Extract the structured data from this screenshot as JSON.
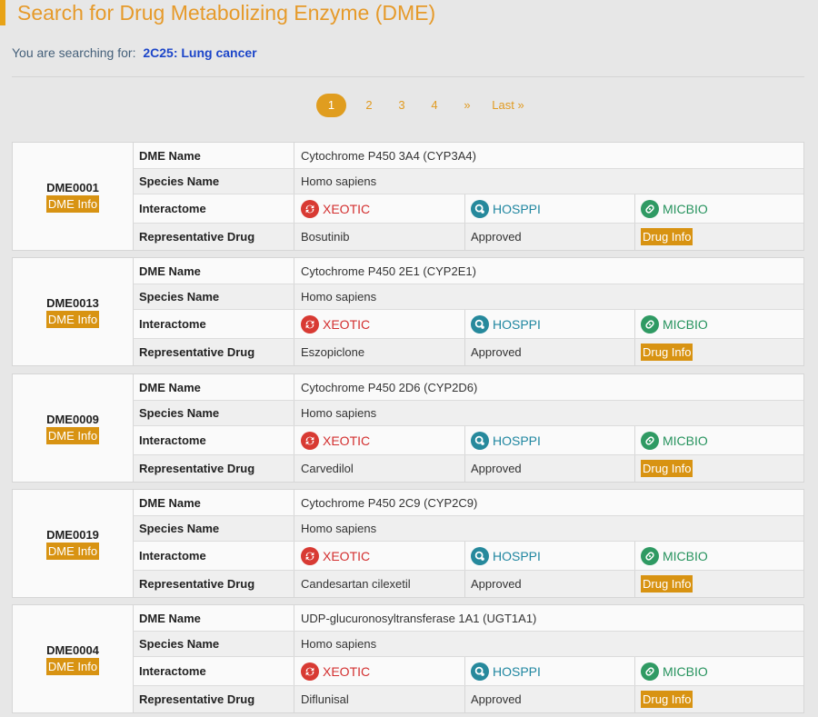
{
  "header": {
    "title": "Search for Drug Metabolizing Enzyme (DME)",
    "search_prefix": "You are searching for:",
    "search_query": "2C25: Lung cancer"
  },
  "pagination": {
    "pages": [
      "1",
      "2",
      "3",
      "4"
    ],
    "active": "1",
    "next": "»",
    "last": "Last »"
  },
  "labels": {
    "dme_name": "DME Name",
    "species_name": "Species Name",
    "interactome": "Interactome",
    "representative_drug": "Representative Drug",
    "dme_info_btn": "DME Info",
    "drug_info_btn": "Drug Info",
    "xeotic": "XEOTIC",
    "hosppi": "HOSPPI",
    "micbio": "MICBIO"
  },
  "colors": {
    "accent": "#e8a317",
    "button": "#d89312",
    "xeotic": "#d32f2f",
    "hosppi": "#1f86a0",
    "micbio": "#27935e"
  },
  "icons": {
    "xeotic": "xeotic-icon",
    "hosppi": "hosppi-icon",
    "micbio": "micbio-icon"
  },
  "records": [
    {
      "id": "DME0001",
      "name": "Cytochrome P450 3A4 (CYP3A4)",
      "species": "Homo sapiens",
      "drug": "Bosutinib",
      "status": "Approved"
    },
    {
      "id": "DME0013",
      "name": "Cytochrome P450 2E1 (CYP2E1)",
      "species": "Homo sapiens",
      "drug": "Eszopiclone",
      "status": "Approved"
    },
    {
      "id": "DME0009",
      "name": "Cytochrome P450 2D6 (CYP2D6)",
      "species": "Homo sapiens",
      "drug": "Carvedilol",
      "status": "Approved"
    },
    {
      "id": "DME0019",
      "name": "Cytochrome P450 2C9 (CYP2C9)",
      "species": "Homo sapiens",
      "drug": "Candesartan cilexetil",
      "status": "Approved"
    },
    {
      "id": "DME0004",
      "name": "UDP-glucuronosyltransferase 1A1 (UGT1A1)",
      "species": "Homo sapiens",
      "drug": "Diflunisal",
      "status": "Approved"
    }
  ]
}
